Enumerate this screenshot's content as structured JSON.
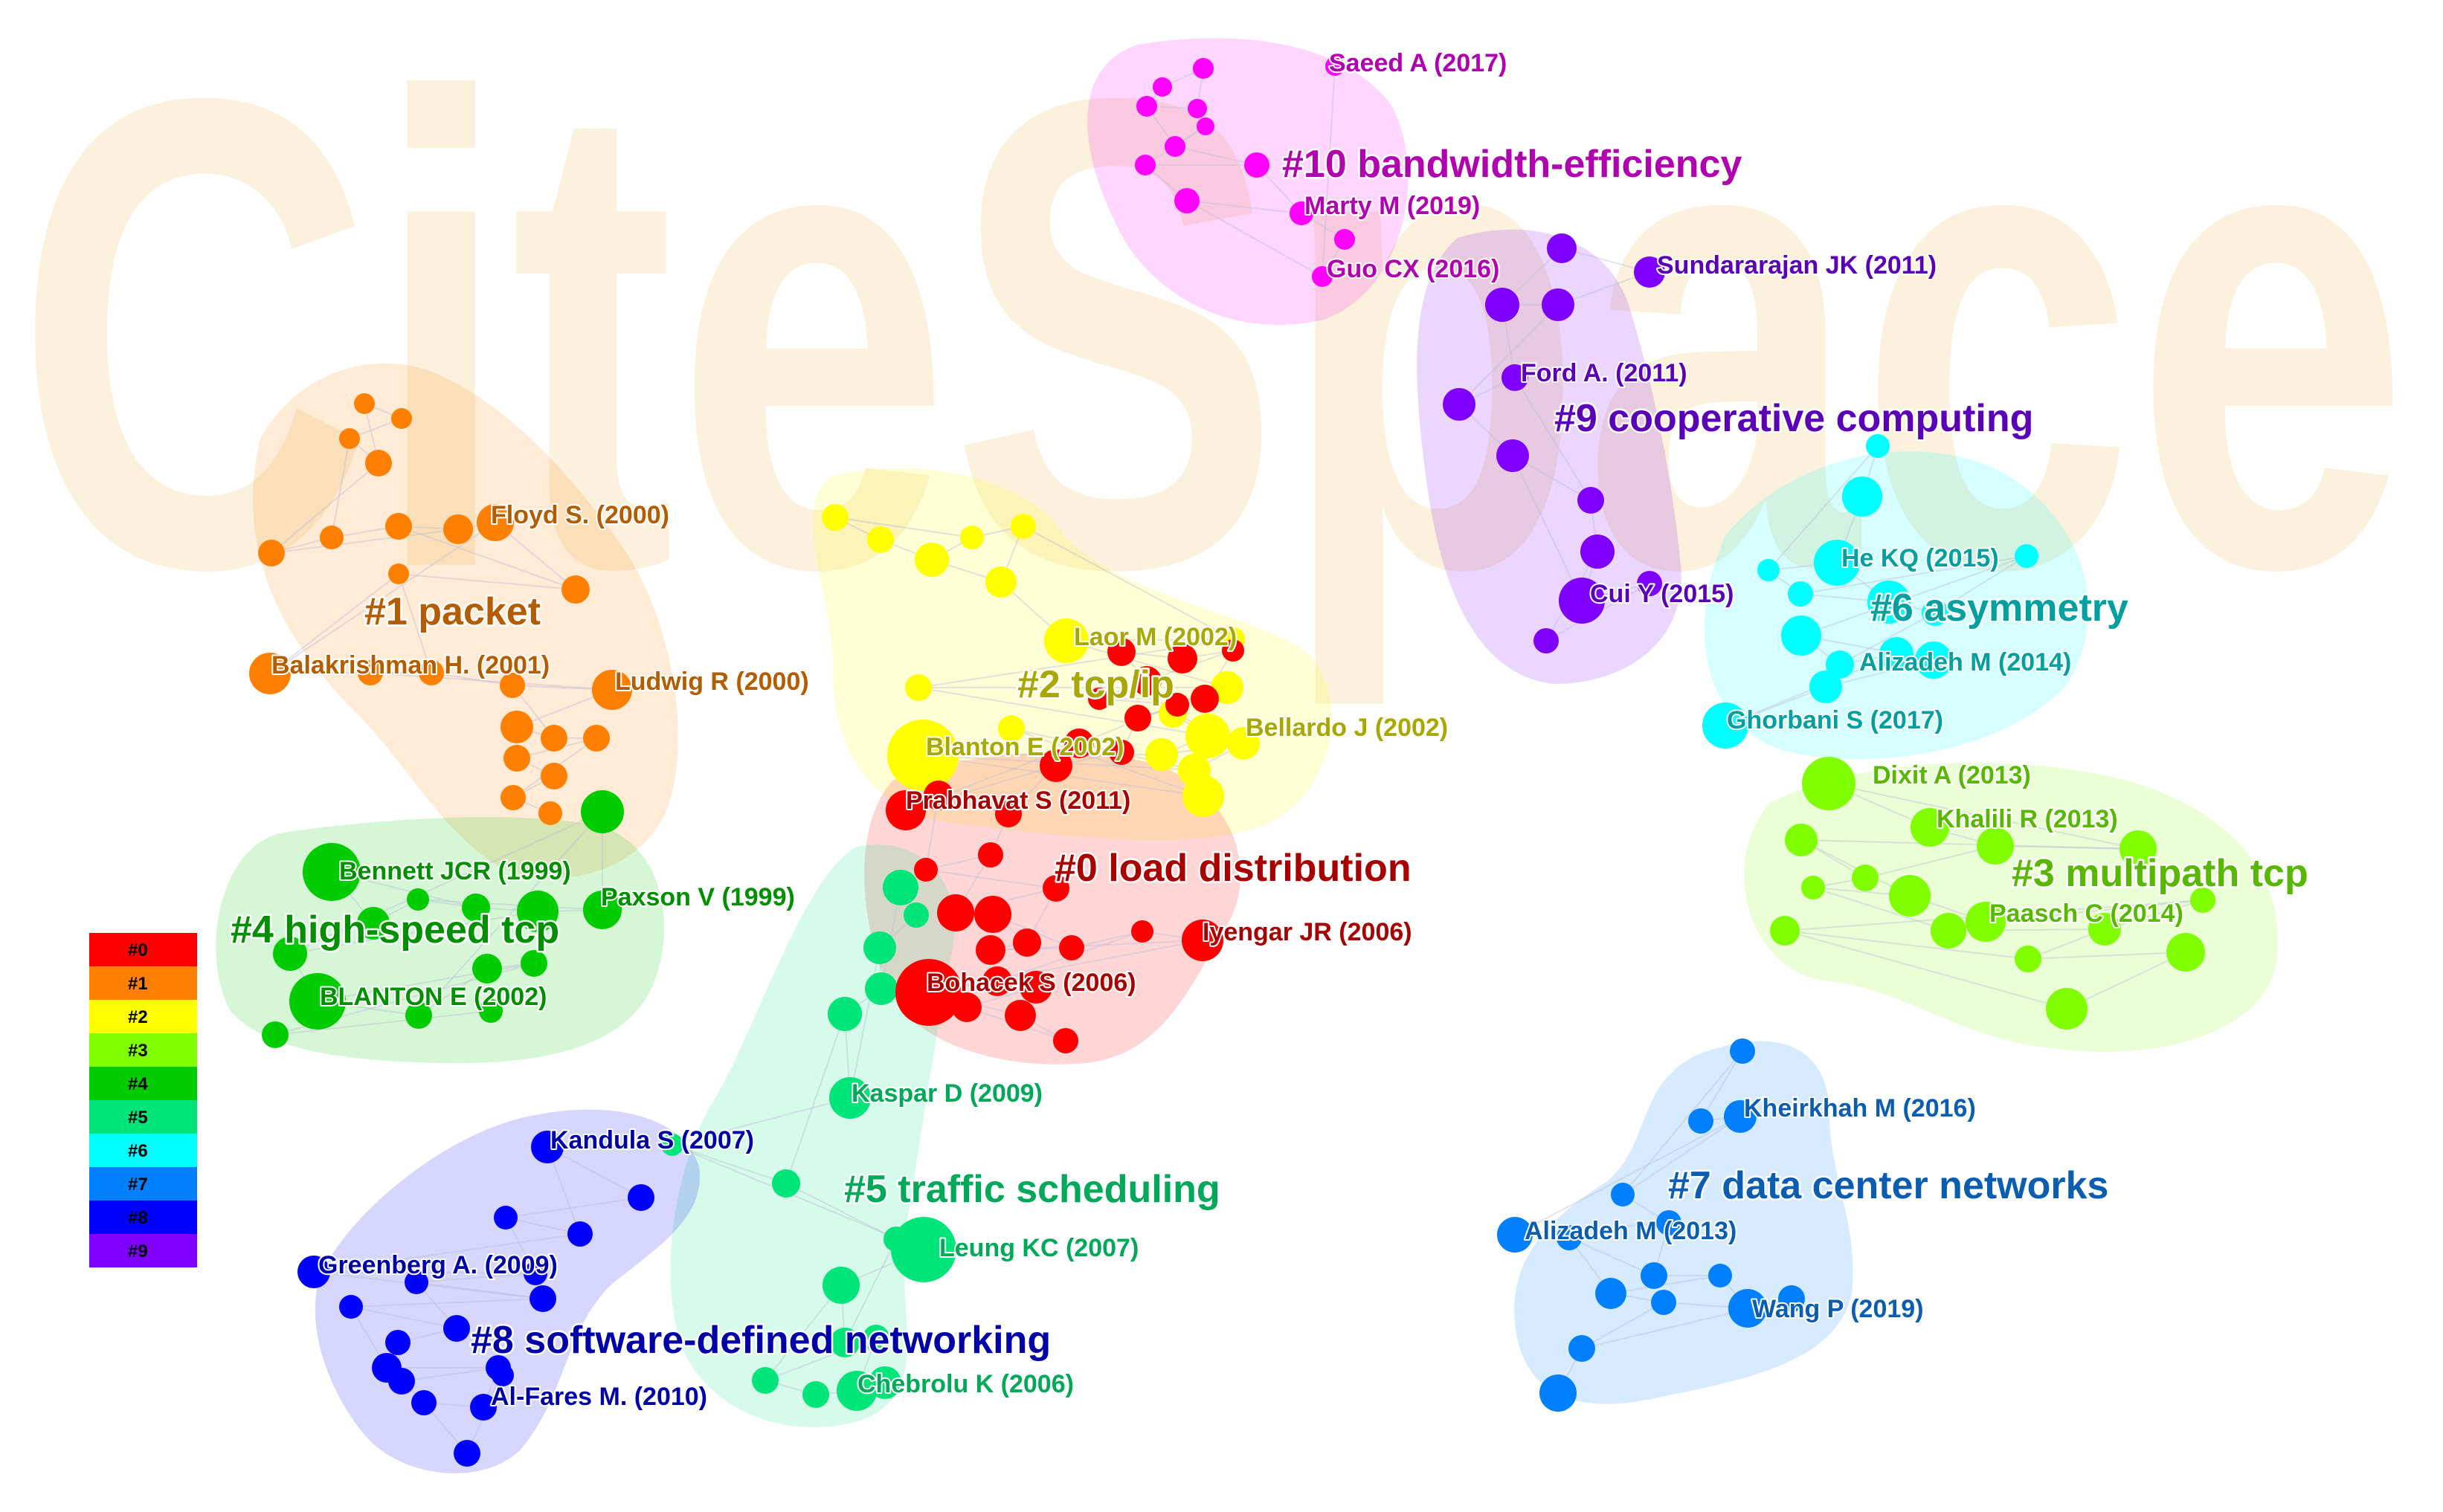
{
  "clusters": [
    {
      "id": "c0",
      "label": "#0 load distribution",
      "color": "#ff0000",
      "text_color": "#a80000"
    },
    {
      "id": "c1",
      "label": "#1 packet",
      "color": "#ff8000",
      "text_color": "#b35c00"
    },
    {
      "id": "c2",
      "label": "#2 tcp/ip",
      "color": "#ffff00",
      "text_color": "#a8a800"
    },
    {
      "id": "c3",
      "label": "#3 multipath tcp",
      "color": "#80ff00",
      "text_color": "#58b800"
    },
    {
      "id": "c4",
      "label": "#4 high-speed tcp",
      "color": "#00cc00",
      "text_color": "#008f00"
    },
    {
      "id": "c5",
      "label": "#5 traffic scheduling",
      "color": "#00e57a",
      "text_color": "#00a85a"
    },
    {
      "id": "c6",
      "label": "#6 asymmetry",
      "color": "#00ffff",
      "text_color": "#00a0a0"
    },
    {
      "id": "c7",
      "label": "#7 data center networks",
      "color": "#0080ff",
      "text_color": "#0a5db0"
    },
    {
      "id": "c8",
      "label": "#8 software-defined networking",
      "color": "#0000ff",
      "text_color": "#0000a8"
    },
    {
      "id": "c9",
      "label": "#9 cooperative computing",
      "color": "#8000ff",
      "text_color": "#5a00b8"
    },
    {
      "id": "c10",
      "label": "#10 bandwidth-efficiency",
      "color": "#ff00ff",
      "text_color": "#b000b0"
    }
  ],
  "node_labels": {
    "c0": [
      "Prabhavat S (2011)",
      "Iyengar JR (2006)",
      "Bohacek S (2006)"
    ],
    "c1": [
      "Floyd S. (2000)",
      "Balakrishman H. (2001)",
      "Ludwig R (2000)"
    ],
    "c2": [
      "Laor M (2002)",
      "Blanton E (2002)",
      "Bellardo J (2002)"
    ],
    "c3": [
      "Dixit A (2013)",
      "Khalili R (2013)",
      "Paasch C (2014)"
    ],
    "c4": [
      "Bennett JCR (1999)",
      "Paxson V (1999)",
      "BLANTON E (2002)"
    ],
    "c5": [
      "Kaspar D (2009)",
      "Leung KC (2007)",
      "Chebrolu K (2006)"
    ],
    "c6": [
      "He KQ (2015)",
      "Alizadeh M (2014)",
      "Ghorbani S (2017)"
    ],
    "c7": [
      "Kheirkhah M (2016)",
      "Alizadeh M (2013)",
      "Wang P (2019)"
    ],
    "c8": [
      "Kandula S (2007)",
      "Greenberg A. (2009)",
      "Al-Fares M. (2010)"
    ],
    "c9": [
      "Sundararajan JK (2011)",
      "Ford A. (2011)",
      "Cui Y (2015)"
    ],
    "c10": [
      "Saeed A (2017)",
      "Marty M (2019)",
      "Guo CX (2016)"
    ]
  },
  "legend": {
    "items": [
      "#0",
      "#1",
      "#2",
      "#3",
      "#4",
      "#5",
      "#6",
      "#7",
      "#8",
      "#9"
    ],
    "colors": [
      "#ff0000",
      "#ff8000",
      "#ffff00",
      "#80ff00",
      "#00cc00",
      "#00e57a",
      "#00ffff",
      "#0080ff",
      "#0000ff",
      "#8000ff"
    ]
  },
  "watermark": "CiteSpace"
}
